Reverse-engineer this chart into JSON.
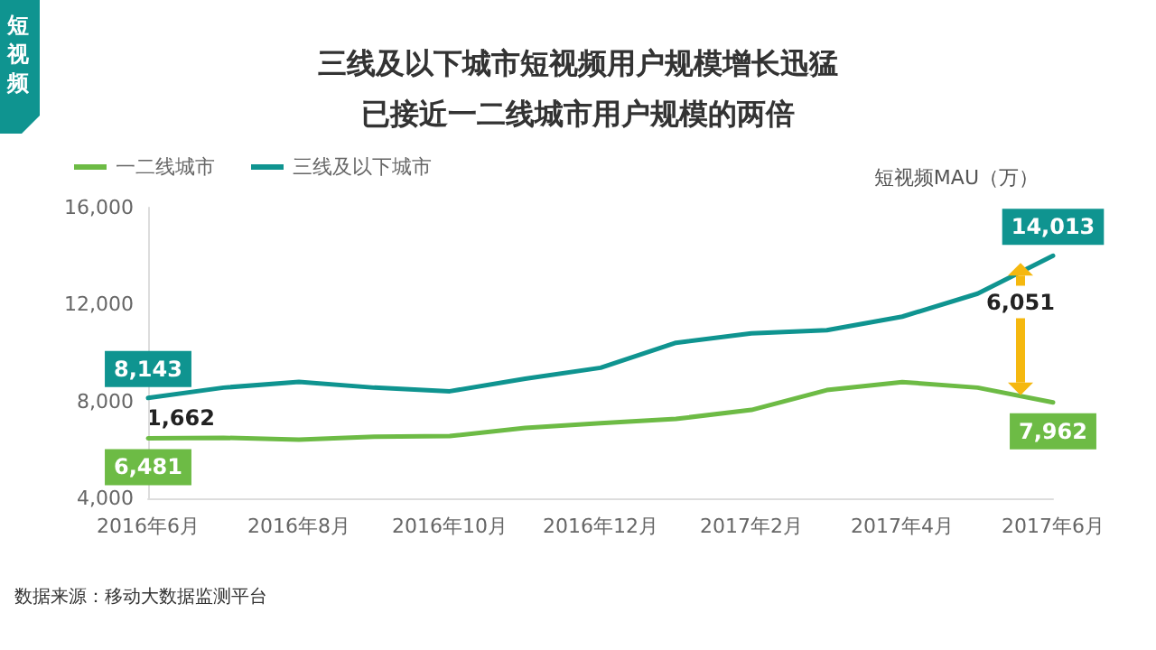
{
  "chart_data": {
    "type": "line",
    "title": "三线及以下城市短视频用户规模增长迅猛",
    "subtitle": "已接近一二线城市用户规模的两倍",
    "ylabel": "短视频MAU（万）",
    "categories": [
      "2016年6月",
      null,
      "2016年8月",
      null,
      "2016年10月",
      null,
      "2016年12月",
      null,
      "2017年2月",
      null,
      "2017年4月",
      null,
      "2017年6月"
    ],
    "series": [
      {
        "name": "一二线城市",
        "color": "#6dbb45",
        "values": [
          6481,
          6500,
          6420,
          6540,
          6570,
          6910,
          7100,
          7280,
          7650,
          8470,
          8800,
          8570,
          7962
        ],
        "value_labels": [
          "6,481",
          null,
          null,
          null,
          null,
          null,
          null,
          null,
          null,
          null,
          null,
          null,
          "7,962"
        ]
      },
      {
        "name": "三线及以下城市",
        "color": "#0f9490",
        "values": [
          8143,
          8570,
          8810,
          8570,
          8420,
          8940,
          9390,
          10420,
          10810,
          10940,
          11500,
          12450,
          14013
        ],
        "value_labels": [
          "8,143",
          null,
          null,
          null,
          null,
          null,
          null,
          null,
          null,
          null,
          null,
          null,
          "14,013"
        ]
      }
    ],
    "annotations": [
      "短视频",
      "1,662",
      "6,051",
      "数据来源：移动大数据监测平台"
    ],
    "ylim": [
      4000,
      16000
    ],
    "yticks": [
      {
        "value": 4000,
        "label": "4,000"
      },
      {
        "value": 8000,
        "label": "8,000"
      },
      {
        "value": 12000,
        "label": "12,000"
      },
      {
        "value": 16000,
        "label": "16,000"
      }
    ],
    "grid": false,
    "legend": "top left",
    "marker": "none",
    "line_style": "solid"
  }
}
